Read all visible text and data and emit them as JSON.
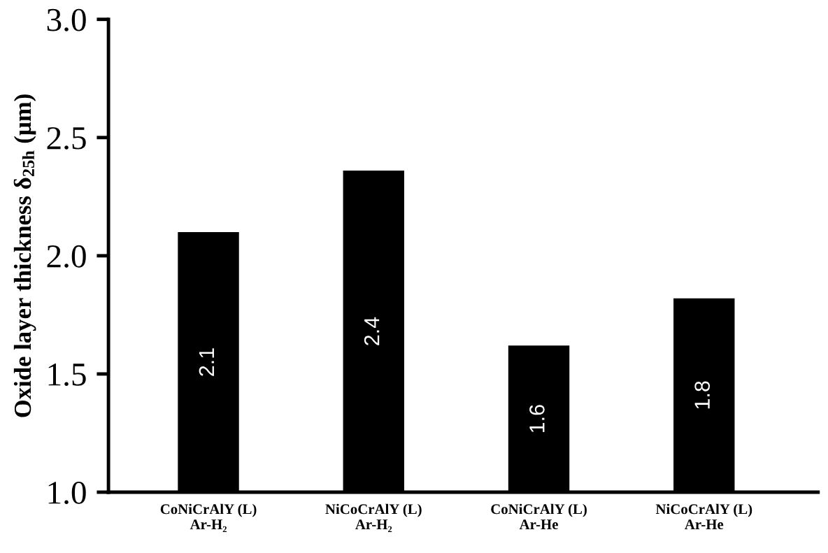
{
  "chart_data": {
    "type": "bar",
    "categories": [
      "CoNiCrAlY (L)\nAr-H₂",
      "NiCoCrAlY (L)\nAr-H₂",
      "CoNiCrAlY (L)\nAr-He",
      "NiCoCrAlY (L)\nAr-He"
    ],
    "values": [
      2.1,
      2.36,
      1.62,
      1.82
    ],
    "value_labels": [
      "2.1",
      "2.4",
      "1.6",
      "1.8"
    ],
    "color": "#000000",
    "ylabel": "Oxide layer thickness δ$_{25h}$ (µm)",
    "ylim": [
      1.0,
      3.0
    ],
    "yticks": [
      {
        "value": 1.0,
        "label": "1.0"
      },
      {
        "value": 1.5,
        "label": "1.5"
      },
      {
        "value": 2.0,
        "label": "2.0"
      },
      {
        "value": 2.5,
        "label": "2.5"
      },
      {
        "value": 3.0,
        "label": "3.0"
      }
    ],
    "grid": false
  }
}
